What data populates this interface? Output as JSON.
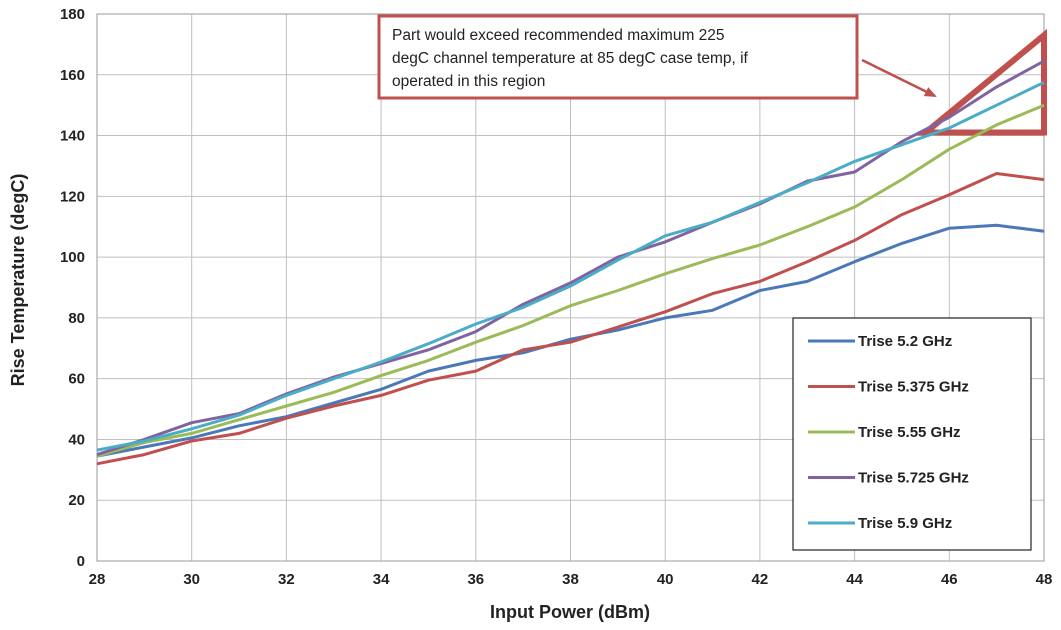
{
  "chart_data": {
    "type": "line",
    "xlabel": "Input Power (dBm)",
    "ylabel": "Rise Temperature (degC)",
    "xlim": [
      28,
      48
    ],
    "ylim": [
      0,
      180
    ],
    "x_ticks": [
      28,
      30,
      32,
      34,
      36,
      38,
      40,
      42,
      44,
      46,
      48
    ],
    "y_ticks": [
      0,
      20,
      40,
      60,
      80,
      100,
      120,
      140,
      160,
      180
    ],
    "grid": "vertical and horizontal gridlines at every tick",
    "legend_position": "bottom-right",
    "x": [
      28,
      29,
      30,
      31,
      32,
      33,
      34,
      35,
      36,
      37,
      38,
      39,
      40,
      41,
      42,
      43,
      44,
      45,
      46,
      47,
      48
    ],
    "series": [
      {
        "name": "Trise 5.2 GHz",
        "color": "#4a78b8",
        "values": [
          34.5,
          37.5,
          40.5,
          44.5,
          47.5,
          52,
          56.5,
          62.5,
          66,
          68.5,
          73,
          76,
          80,
          82.5,
          89,
          92,
          98.5,
          104.5,
          109.5,
          110.5,
          108.5
        ]
      },
      {
        "name": "Trise 5.375 GHz",
        "color": "#c0504d",
        "values": [
          32,
          35,
          39.5,
          42,
          47,
          51,
          54.5,
          59.5,
          62.5,
          69.5,
          72,
          77,
          82,
          88,
          92,
          98.5,
          105.5,
          114,
          120.5,
          127.5,
          125.5
        ]
      },
      {
        "name": "Trise 5.55 GHz",
        "color": "#9bbb59",
        "values": [
          34.5,
          39,
          42,
          46.5,
          51,
          55.5,
          61,
          66,
          72,
          77.5,
          84,
          89,
          94.5,
          99.5,
          104,
          110,
          116.5,
          125.5,
          135.5,
          143.5,
          150
        ]
      },
      {
        "name": "Trise 5.725 GHz",
        "color": "#8064a2",
        "values": [
          35,
          40,
          45.5,
          48.5,
          55,
          60.5,
          65,
          69.5,
          75.5,
          84.5,
          91.5,
          100,
          105,
          111.5,
          117.5,
          125,
          128,
          138,
          146,
          156,
          164.5
        ]
      },
      {
        "name": "Trise 5.9 GHz",
        "color": "#4bacc6",
        "values": [
          36.5,
          39.5,
          43.5,
          48,
          54.5,
          60,
          65.5,
          71.5,
          78,
          83.5,
          90.5,
          99,
          107,
          111.5,
          118,
          124.5,
          131.5,
          137,
          142.5,
          150,
          157.5
        ]
      }
    ],
    "annotation": {
      "lines": [
        "Part would exceed recommended maximum 225",
        "degC channel temperature at 85 degC case temp, if",
        "operated in this region"
      ],
      "border_color": "#c0504d",
      "region_corners": [
        [
          45.5,
          141
        ],
        [
          48,
          141
        ],
        [
          48,
          173
        ]
      ]
    }
  }
}
